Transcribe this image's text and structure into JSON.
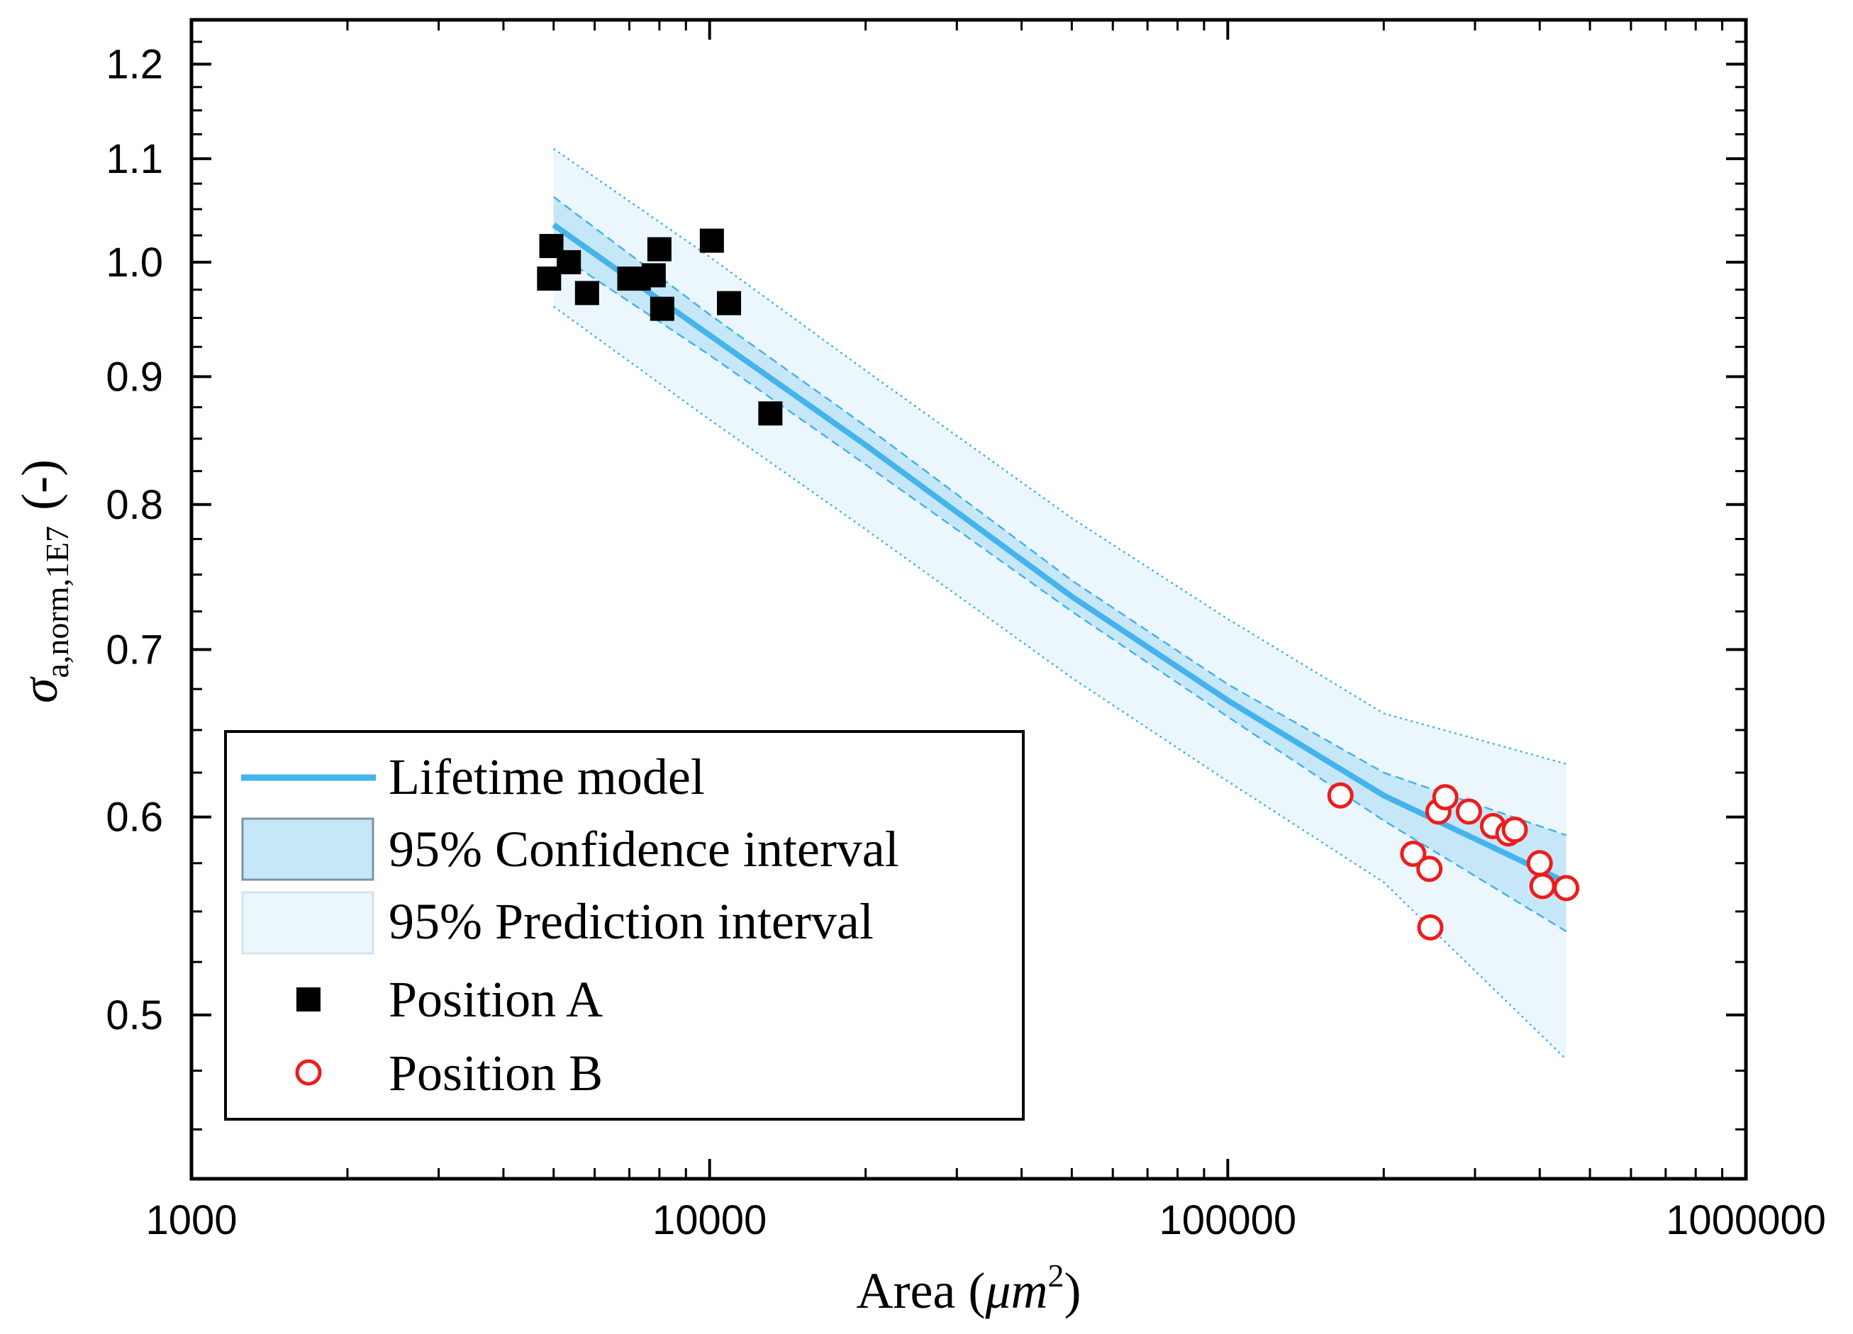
{
  "chart_data": {
    "type": "scatter",
    "title": "",
    "xlabel": {
      "main": "Area (",
      "var": "μm",
      "sup": "2",
      "close": ")"
    },
    "ylabel": {
      "sigma": "σ",
      "sub": "a,norm,1E7",
      "unit": "(-)"
    },
    "xscale": "log",
    "yscale": "log",
    "xlim": [
      1000,
      1000000
    ],
    "ylim": [
      0.43,
      1.25
    ],
    "x_ticks": [
      "1000",
      "10000",
      "100000",
      "1000000"
    ],
    "x_tick_values": [
      1000,
      10000,
      100000,
      1000000
    ],
    "y_ticks": [
      "0.5",
      "0.6",
      "0.7",
      "0.8",
      "0.9",
      "1.0",
      "1.1",
      "1.2"
    ],
    "y_tick_values": [
      0.5,
      0.6,
      0.7,
      0.8,
      0.9,
      1.0,
      1.1,
      1.2
    ],
    "model": {
      "name": "Lifetime model",
      "x": [
        5000,
        10000,
        20000,
        50000,
        100000,
        200000,
        450000
      ],
      "y": [
        1.035,
        0.935,
        0.845,
        0.735,
        0.668,
        0.612,
        0.565
      ]
    },
    "confidence_interval": {
      "name": "95% Confidence interval",
      "x": [
        5000,
        10000,
        20000,
        50000,
        100000,
        200000,
        450000
      ],
      "lower": [
        1.01,
        0.918,
        0.83,
        0.725,
        0.658,
        0.598,
        0.54
      ],
      "upper": [
        1.062,
        0.953,
        0.86,
        0.746,
        0.678,
        0.625,
        0.59
      ]
    },
    "prediction_interval": {
      "name": "95% Prediction interval",
      "x": [
        5000,
        10000,
        20000,
        50000,
        100000,
        200000,
        450000
      ],
      "lower": [
        0.96,
        0.865,
        0.782,
        0.682,
        0.62,
        0.565,
        0.48
      ],
      "upper": [
        1.11,
        1.005,
        0.905,
        0.79,
        0.72,
        0.66,
        0.63
      ]
    },
    "series": [
      {
        "name": "Position A",
        "marker": "filled-square",
        "color": "#000000",
        "points": [
          {
            "x": 4950,
            "y": 1.015
          },
          {
            "x": 4900,
            "y": 0.985
          },
          {
            "x": 5350,
            "y": 1.0
          },
          {
            "x": 5800,
            "y": 0.972
          },
          {
            "x": 7000,
            "y": 0.985
          },
          {
            "x": 7300,
            "y": 0.985
          },
          {
            "x": 7800,
            "y": 0.988
          },
          {
            "x": 8000,
            "y": 1.012
          },
          {
            "x": 8100,
            "y": 0.958
          },
          {
            "x": 10100,
            "y": 1.02
          },
          {
            "x": 10900,
            "y": 0.963
          },
          {
            "x": 13100,
            "y": 0.87
          }
        ]
      },
      {
        "name": "Position B",
        "marker": "open-circle",
        "color": "#ee1c1c",
        "points": [
          {
            "x": 165000,
            "y": 0.612
          },
          {
            "x": 228000,
            "y": 0.58
          },
          {
            "x": 245000,
            "y": 0.572
          },
          {
            "x": 246000,
            "y": 0.542
          },
          {
            "x": 255000,
            "y": 0.603
          },
          {
            "x": 263000,
            "y": 0.611
          },
          {
            "x": 292000,
            "y": 0.603
          },
          {
            "x": 325000,
            "y": 0.595
          },
          {
            "x": 348000,
            "y": 0.591
          },
          {
            "x": 358000,
            "y": 0.593
          },
          {
            "x": 400000,
            "y": 0.575
          },
          {
            "x": 405000,
            "y": 0.563
          },
          {
            "x": 450000,
            "y": 0.562
          }
        ]
      }
    ],
    "legend": {
      "position": "bottom-left",
      "entries": [
        "Lifetime model",
        "95% Confidence interval",
        "95% Prediction interval",
        "Position A",
        "Position B"
      ]
    },
    "colors": {
      "model": "#45b3ec",
      "ci_fill": "#c6e7f8",
      "pi_fill": "#ecf7fd",
      "bound_line": "#45b3ec",
      "legend_border_ci": "#7f93a4",
      "legend_border_pi": "#d5e3ee"
    }
  }
}
